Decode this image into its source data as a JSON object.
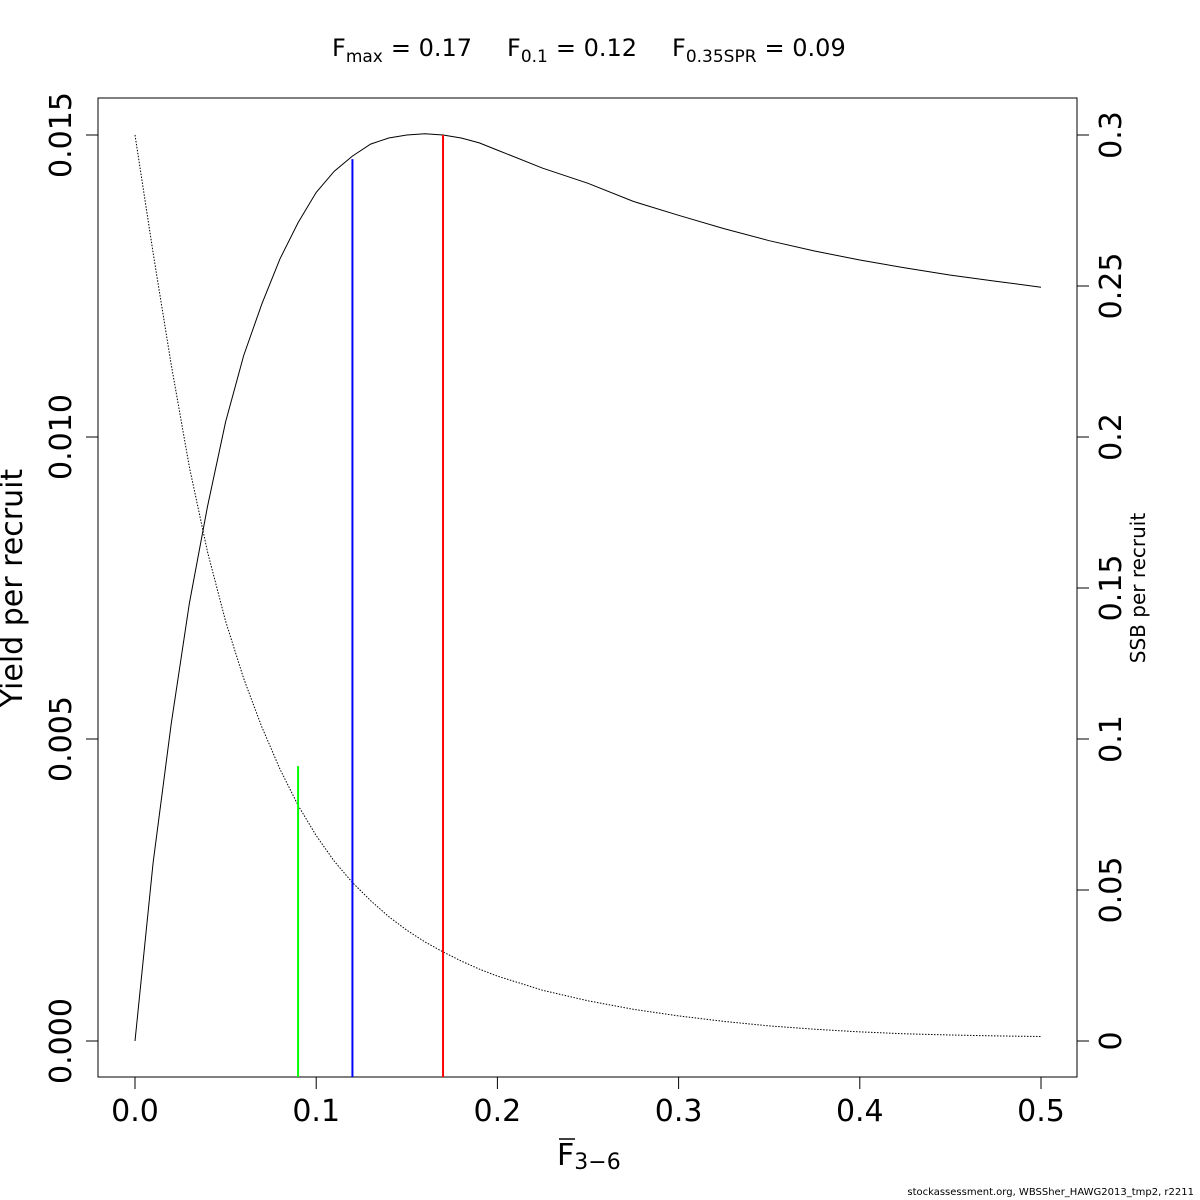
{
  "header": {
    "fmax_symbol": "F",
    "fmax_sub": "max",
    "fmax_value": "= 0.17",
    "f01_symbol": "F",
    "f01_sub": "0.1",
    "f01_value": "= 0.12",
    "fspr_symbol": "F",
    "fspr_sub": "0.35SPR",
    "fspr_value": "= 0.09"
  },
  "footer": {
    "credit": "stockassessment.org, WBSSher_HAWG2013_tmp2, r2211"
  },
  "chart_data": {
    "type": "line",
    "title": "",
    "xlabel_main": "F",
    "xlabel_sub": "3−6",
    "ylabel": "Yield per recruit",
    "y2label": "SSB per recruit",
    "xlim": [
      0.0,
      0.5
    ],
    "ylim": [
      0.0,
      0.015
    ],
    "y2lim": [
      0.0,
      0.3
    ],
    "x_ticks": [
      "0.0",
      "0.1",
      "0.2",
      "0.3",
      "0.4",
      "0.5"
    ],
    "y_ticks": [
      "0.000",
      "0.005",
      "0.010",
      "0.015"
    ],
    "y2_ticks": [
      "0",
      "0.05",
      "0.1",
      "0.15",
      "0.2",
      "0.25",
      "0.3"
    ],
    "colors": {
      "axis": "#000000",
      "fmax": "#ff0000",
      "f01": "#0000ff",
      "fspr": "#00ff00"
    },
    "series": [
      {
        "axis": "left",
        "style": "solid",
        "x": [
          0.0,
          0.01,
          0.02,
          0.03,
          0.04,
          0.05,
          0.06,
          0.07,
          0.08,
          0.09,
          0.1,
          0.11,
          0.12,
          0.13,
          0.14,
          0.15,
          0.16,
          0.17,
          0.18,
          0.19,
          0.2,
          0.225,
          0.25,
          0.275,
          0.3,
          0.325,
          0.35,
          0.375,
          0.4,
          0.425,
          0.45,
          0.475,
          0.5
        ],
        "values": [
          0.0,
          0.00295,
          0.00525,
          0.00725,
          0.00885,
          0.01025,
          0.01135,
          0.0122,
          0.01295,
          0.01355,
          0.01405,
          0.0144,
          0.01465,
          0.01485,
          0.01495,
          0.015,
          0.01502,
          0.015,
          0.01495,
          0.01487,
          0.01475,
          0.01445,
          0.0142,
          0.0139,
          0.01367,
          0.01345,
          0.01325,
          0.01308,
          0.01293,
          0.0128,
          0.01268,
          0.01258,
          0.01248
        ]
      },
      {
        "axis": "right",
        "style": "dotted",
        "x": [
          0.0,
          0.01,
          0.02,
          0.03,
          0.04,
          0.05,
          0.06,
          0.07,
          0.08,
          0.09,
          0.1,
          0.11,
          0.12,
          0.13,
          0.14,
          0.15,
          0.16,
          0.17,
          0.18,
          0.19,
          0.2,
          0.225,
          0.25,
          0.275,
          0.3,
          0.325,
          0.35,
          0.375,
          0.4,
          0.425,
          0.45,
          0.475,
          0.5
        ],
        "values": [
          0.3,
          0.261,
          0.224,
          0.19,
          0.162,
          0.139,
          0.12,
          0.104,
          0.09,
          0.078,
          0.068,
          0.0595,
          0.0525,
          0.0465,
          0.0412,
          0.0367,
          0.0328,
          0.0295,
          0.0265,
          0.0238,
          0.0215,
          0.0168,
          0.0133,
          0.0105,
          0.0083,
          0.0065,
          0.005,
          0.0039,
          0.003,
          0.0024,
          0.002,
          0.0017,
          0.0015
        ]
      }
    ],
    "reference_lines": [
      {
        "name": "Fmax",
        "x": 0.17,
        "y_top": 0.015,
        "color": "#ff0000"
      },
      {
        "name": "F0.1",
        "x": 0.12,
        "y_top": 0.0146,
        "color": "#0000ff"
      },
      {
        "name": "F0.35SPR",
        "x": 0.09,
        "y_top": 0.00455,
        "color": "#00ff00"
      }
    ]
  }
}
